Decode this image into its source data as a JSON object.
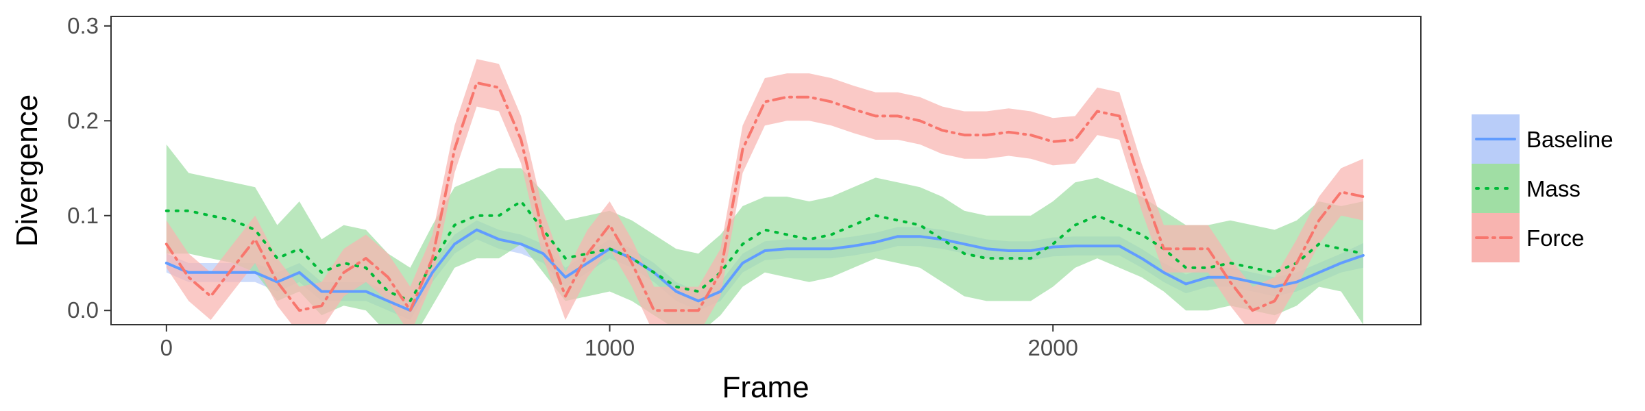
{
  "chart_data": {
    "type": "line",
    "title": "",
    "xlabel": "Frame",
    "ylabel": "Divergence",
    "xlim": [
      -125,
      2830
    ],
    "ylim": [
      -0.015,
      0.31
    ],
    "x_ticks": [
      0,
      1000,
      2000
    ],
    "x_tick_labels": [
      "0",
      "1000",
      "2000"
    ],
    "y_ticks": [
      0.0,
      0.1,
      0.2,
      0.3
    ],
    "y_tick_labels": [
      "0.0",
      "0.1",
      "0.2",
      "0.3"
    ],
    "grid": false,
    "legend_position": "right",
    "series": [
      {
        "name": "Baseline",
        "color": "#619CFF",
        "fill": "#b9cdf9",
        "dash": "solid",
        "x": [
          0,
          50,
          100,
          150,
          200,
          250,
          300,
          350,
          400,
          450,
          500,
          550,
          600,
          650,
          700,
          750,
          800,
          850,
          900,
          950,
          1000,
          1050,
          1100,
          1150,
          1200,
          1250,
          1300,
          1350,
          1400,
          1450,
          1500,
          1550,
          1600,
          1650,
          1700,
          1750,
          1800,
          1850,
          1900,
          1950,
          2000,
          2050,
          2100,
          2150,
          2200,
          2250,
          2300,
          2350,
          2400,
          2450,
          2500,
          2550,
          2600,
          2650,
          2700
        ],
        "y": [
          0.05,
          0.04,
          0.04,
          0.04,
          0.04,
          0.03,
          0.04,
          0.02,
          0.02,
          0.02,
          0.01,
          0.0,
          0.04,
          0.07,
          0.085,
          0.075,
          0.07,
          0.06,
          0.035,
          0.05,
          0.065,
          0.055,
          0.04,
          0.02,
          0.01,
          0.02,
          0.05,
          0.063,
          0.065,
          0.065,
          0.065,
          0.068,
          0.072,
          0.078,
          0.078,
          0.075,
          0.07,
          0.065,
          0.063,
          0.063,
          0.067,
          0.068,
          0.068,
          0.068,
          0.055,
          0.04,
          0.028,
          0.035,
          0.035,
          0.03,
          0.025,
          0.03,
          0.04,
          0.05,
          0.058
        ],
        "lower": [
          0.04,
          0.03,
          0.03,
          0.03,
          0.03,
          0.02,
          0.03,
          0.01,
          0.01,
          0.01,
          0.0,
          -0.01,
          0.03,
          0.06,
          0.075,
          0.065,
          0.06,
          0.05,
          0.025,
          0.04,
          0.055,
          0.045,
          0.03,
          0.01,
          0.0,
          0.01,
          0.04,
          0.053,
          0.055,
          0.055,
          0.055,
          0.058,
          0.062,
          0.068,
          0.068,
          0.065,
          0.06,
          0.055,
          0.053,
          0.053,
          0.057,
          0.058,
          0.058,
          0.058,
          0.045,
          0.03,
          0.018,
          0.025,
          0.025,
          0.02,
          0.015,
          0.02,
          0.03,
          0.04,
          0.045
        ],
        "upper": [
          0.06,
          0.05,
          0.05,
          0.05,
          0.05,
          0.04,
          0.05,
          0.03,
          0.03,
          0.03,
          0.02,
          0.01,
          0.05,
          0.08,
          0.095,
          0.085,
          0.08,
          0.07,
          0.045,
          0.06,
          0.075,
          0.065,
          0.05,
          0.03,
          0.02,
          0.03,
          0.06,
          0.073,
          0.075,
          0.075,
          0.075,
          0.078,
          0.082,
          0.088,
          0.088,
          0.085,
          0.08,
          0.075,
          0.073,
          0.073,
          0.077,
          0.078,
          0.078,
          0.078,
          0.065,
          0.05,
          0.038,
          0.045,
          0.045,
          0.04,
          0.035,
          0.04,
          0.05,
          0.06,
          0.071
        ]
      },
      {
        "name": "Mass",
        "color": "#00BA38",
        "fill": "#a0dea4",
        "dash": "dotted",
        "x": [
          0,
          50,
          100,
          150,
          200,
          250,
          300,
          350,
          400,
          450,
          500,
          550,
          600,
          650,
          700,
          750,
          800,
          850,
          900,
          950,
          1000,
          1050,
          1100,
          1150,
          1200,
          1250,
          1300,
          1350,
          1400,
          1450,
          1500,
          1550,
          1600,
          1650,
          1700,
          1750,
          1800,
          1850,
          1900,
          1950,
          2000,
          2050,
          2100,
          2150,
          2200,
          2250,
          2300,
          2350,
          2400,
          2450,
          2500,
          2550,
          2600,
          2650,
          2700
        ],
        "y": [
          0.105,
          0.105,
          0.1,
          0.095,
          0.085,
          0.055,
          0.065,
          0.04,
          0.05,
          0.045,
          0.02,
          0.01,
          0.05,
          0.09,
          0.1,
          0.1,
          0.115,
          0.085,
          0.055,
          0.06,
          0.065,
          0.055,
          0.04,
          0.025,
          0.02,
          0.04,
          0.07,
          0.085,
          0.08,
          0.075,
          0.08,
          0.09,
          0.1,
          0.095,
          0.09,
          0.075,
          0.06,
          0.055,
          0.055,
          0.055,
          0.07,
          0.09,
          0.1,
          0.09,
          0.08,
          0.065,
          0.045,
          0.045,
          0.05,
          0.045,
          0.04,
          0.05,
          0.07,
          0.065,
          0.06
        ],
        "lower": [
          0.06,
          0.06,
          0.055,
          0.05,
          0.04,
          0.01,
          0.02,
          -0.005,
          0.005,
          0.0,
          -0.025,
          -0.035,
          0.005,
          0.045,
          0.055,
          0.055,
          0.07,
          0.04,
          0.01,
          0.015,
          0.02,
          0.01,
          -0.005,
          -0.02,
          -0.025,
          -0.005,
          0.025,
          0.04,
          0.035,
          0.03,
          0.035,
          0.045,
          0.055,
          0.05,
          0.045,
          0.03,
          0.015,
          0.01,
          0.01,
          0.01,
          0.025,
          0.045,
          0.055,
          0.045,
          0.035,
          0.02,
          0.0,
          0.0,
          0.005,
          0.0,
          -0.005,
          0.005,
          0.025,
          0.02,
          -0.015
        ],
        "upper": [
          0.175,
          0.145,
          0.14,
          0.135,
          0.13,
          0.09,
          0.115,
          0.075,
          0.09,
          0.085,
          0.06,
          0.045,
          0.09,
          0.13,
          0.14,
          0.15,
          0.15,
          0.125,
          0.095,
          0.1,
          0.105,
          0.095,
          0.08,
          0.065,
          0.06,
          0.08,
          0.11,
          0.12,
          0.12,
          0.115,
          0.12,
          0.13,
          0.14,
          0.135,
          0.13,
          0.12,
          0.105,
          0.1,
          0.1,
          0.1,
          0.115,
          0.135,
          0.14,
          0.13,
          0.12,
          0.105,
          0.09,
          0.09,
          0.095,
          0.09,
          0.085,
          0.095,
          0.115,
          0.11,
          0.115
        ]
      },
      {
        "name": "Force",
        "color": "#F8766D",
        "fill": "#f8b4b0",
        "dash": "dashdot",
        "x": [
          0,
          50,
          100,
          150,
          200,
          250,
          300,
          350,
          400,
          450,
          500,
          550,
          600,
          650,
          700,
          750,
          800,
          850,
          900,
          950,
          1000,
          1050,
          1100,
          1150,
          1200,
          1250,
          1300,
          1350,
          1400,
          1450,
          1500,
          1550,
          1600,
          1650,
          1700,
          1750,
          1800,
          1850,
          1900,
          1950,
          2000,
          2050,
          2100,
          2150,
          2200,
          2250,
          2300,
          2350,
          2400,
          2450,
          2500,
          2550,
          2600,
          2650,
          2700
        ],
        "y": [
          0.07,
          0.035,
          0.015,
          0.045,
          0.075,
          0.03,
          0.0,
          0.005,
          0.04,
          0.055,
          0.035,
          0.0,
          0.055,
          0.17,
          0.24,
          0.235,
          0.18,
          0.08,
          0.015,
          0.06,
          0.09,
          0.05,
          0.0,
          0.0,
          0.0,
          0.04,
          0.17,
          0.22,
          0.225,
          0.225,
          0.22,
          0.212,
          0.205,
          0.205,
          0.2,
          0.19,
          0.185,
          0.185,
          0.188,
          0.185,
          0.178,
          0.18,
          0.21,
          0.205,
          0.13,
          0.065,
          0.065,
          0.065,
          0.03,
          0.0,
          0.01,
          0.05,
          0.095,
          0.125,
          0.12
        ],
        "lower": [
          0.045,
          0.01,
          -0.01,
          0.02,
          0.05,
          0.005,
          -0.025,
          -0.02,
          0.015,
          0.03,
          0.01,
          -0.025,
          0.03,
          0.145,
          0.215,
          0.21,
          0.155,
          0.055,
          -0.01,
          0.035,
          0.065,
          0.025,
          -0.025,
          -0.025,
          -0.025,
          0.015,
          0.145,
          0.195,
          0.2,
          0.2,
          0.195,
          0.187,
          0.18,
          0.18,
          0.175,
          0.165,
          0.16,
          0.16,
          0.163,
          0.16,
          0.153,
          0.155,
          0.185,
          0.18,
          0.105,
          0.04,
          0.04,
          0.04,
          0.005,
          -0.025,
          -0.015,
          0.025,
          0.07,
          0.1,
          0.095
        ],
        "upper": [
          0.095,
          0.06,
          0.04,
          0.07,
          0.1,
          0.055,
          0.025,
          0.03,
          0.065,
          0.08,
          0.06,
          0.025,
          0.08,
          0.195,
          0.265,
          0.26,
          0.205,
          0.105,
          0.04,
          0.085,
          0.115,
          0.075,
          0.025,
          0.025,
          0.025,
          0.065,
          0.195,
          0.245,
          0.25,
          0.25,
          0.245,
          0.237,
          0.23,
          0.23,
          0.225,
          0.215,
          0.21,
          0.21,
          0.213,
          0.21,
          0.203,
          0.205,
          0.235,
          0.23,
          0.155,
          0.09,
          0.09,
          0.09,
          0.055,
          0.025,
          0.035,
          0.075,
          0.12,
          0.15,
          0.16
        ]
      }
    ]
  }
}
